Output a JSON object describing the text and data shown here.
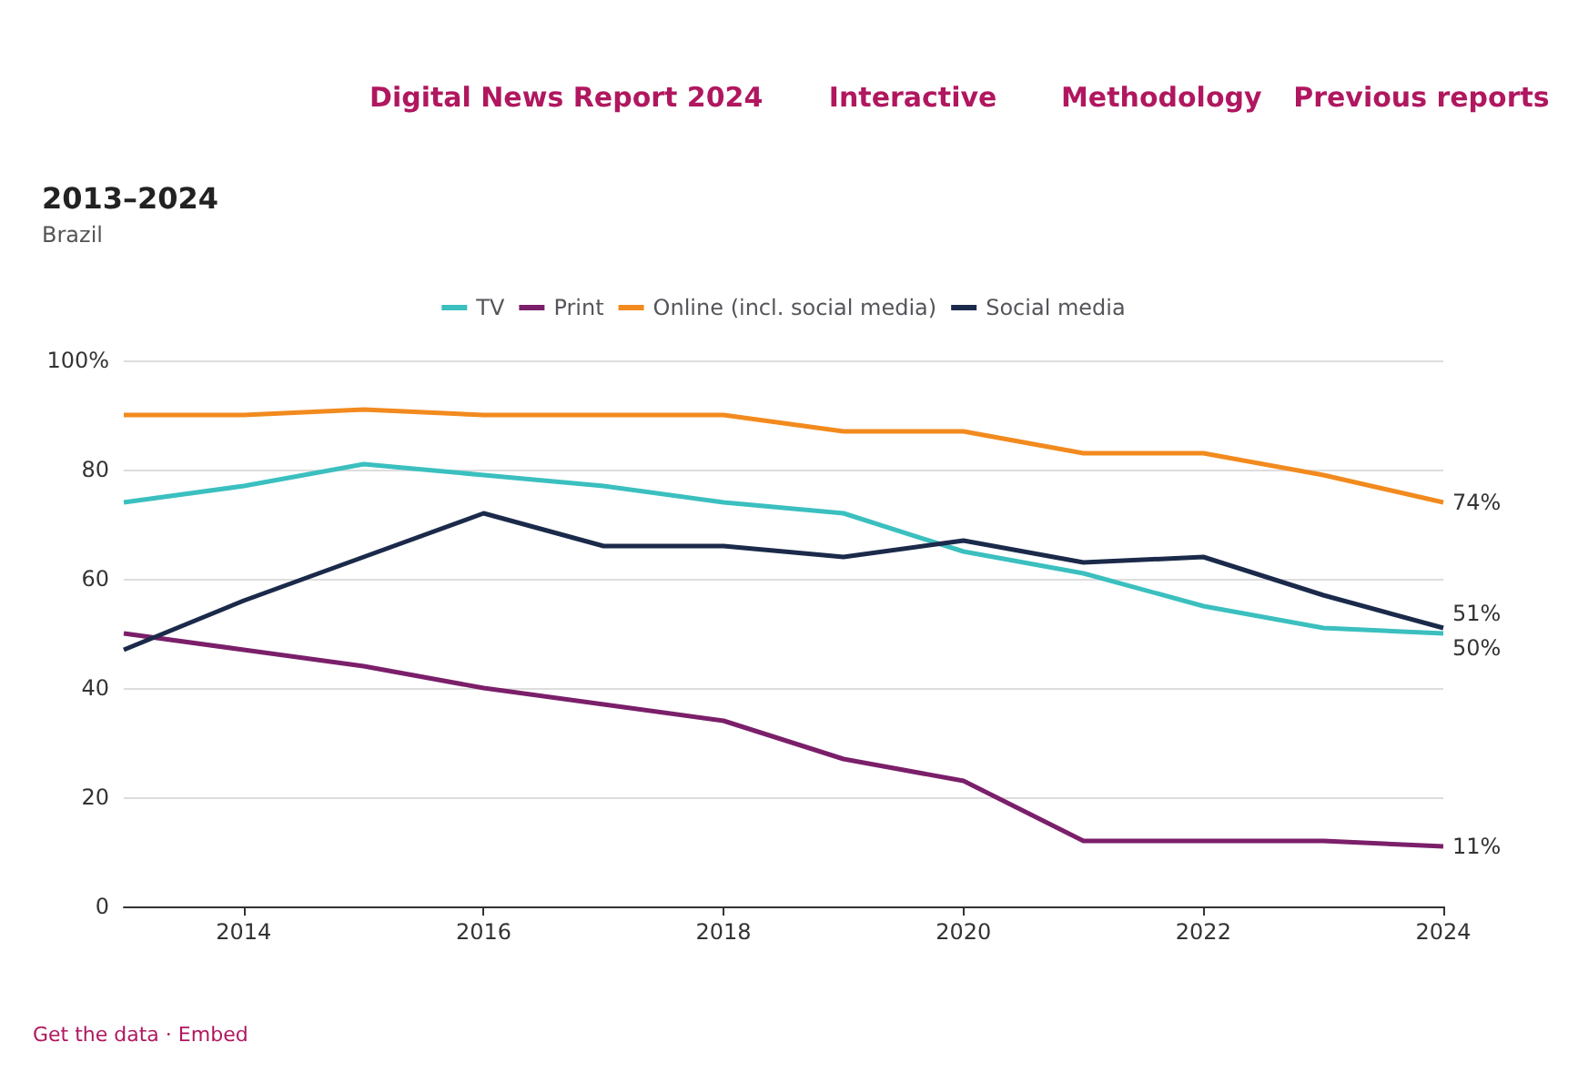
{
  "chart_data": {
    "type": "line",
    "title": "2013–2024",
    "subtitle": "Brazil",
    "annotations": [
      "Digital News Report 2024",
      "Interactive",
      "Methodology",
      "Previous reports",
      "Get the data · Embed"
    ],
    "x": [
      2013,
      2014,
      2015,
      2016,
      2017,
      2018,
      2019,
      2020,
      2021,
      2022,
      2023,
      2024
    ],
    "series": [
      {
        "name": "TV",
        "color": "#3bbfbf",
        "values": [
          74,
          77,
          81,
          79,
          77,
          74,
          72,
          65,
          61,
          55,
          51,
          50
        ],
        "value_labels": [
          null,
          null,
          null,
          null,
          null,
          null,
          null,
          null,
          null,
          null,
          null,
          "50%"
        ]
      },
      {
        "name": "Print",
        "color": "#7b1f6a",
        "values": [
          50,
          47,
          44,
          40,
          37,
          34,
          27,
          23,
          12,
          12,
          12,
          11
        ],
        "value_labels": [
          null,
          null,
          null,
          null,
          null,
          null,
          null,
          null,
          null,
          null,
          null,
          "11%"
        ]
      },
      {
        "name": "Online (incl. social media)",
        "color": "#f28a1e",
        "values": [
          90,
          90,
          91,
          90,
          90,
          90,
          87,
          87,
          83,
          83,
          79,
          74
        ],
        "value_labels": [
          null,
          null,
          null,
          null,
          null,
          null,
          null,
          null,
          null,
          null,
          null,
          "74%"
        ]
      },
      {
        "name": "Social media",
        "color": "#1b2a4a",
        "values": [
          47,
          56,
          64,
          72,
          66,
          66,
          64,
          67,
          63,
          64,
          57,
          51
        ],
        "value_labels": [
          null,
          null,
          null,
          null,
          null,
          null,
          null,
          null,
          null,
          null,
          null,
          "51%"
        ]
      }
    ],
    "xlim": [
      2013,
      2024
    ],
    "xticks": [
      2014,
      2016,
      2018,
      2020,
      2022,
      2024
    ],
    "ylim": [
      0,
      100
    ],
    "yticks": [
      0,
      20,
      40,
      60,
      80,
      {
        "value": 100,
        "label": "100%"
      }
    ],
    "grid": "y",
    "legend": "top",
    "marker": "none",
    "line_style": "solid"
  }
}
